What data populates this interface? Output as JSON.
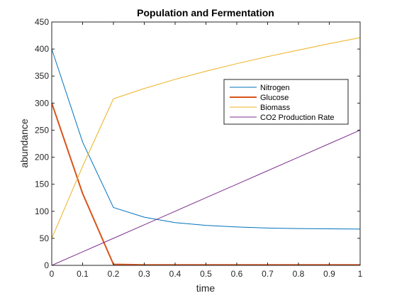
{
  "chart_data": {
    "type": "line",
    "title": "Population and Fermentation",
    "xlabel": "time",
    "ylabel": "abundance",
    "xlim": [
      0,
      1
    ],
    "ylim": [
      0,
      450
    ],
    "xticks": [
      0,
      0.1,
      0.2,
      0.3,
      0.4,
      0.5,
      0.6,
      0.7,
      0.8,
      0.9,
      1
    ],
    "yticks": [
      0,
      50,
      100,
      150,
      200,
      250,
      300,
      350,
      400,
      450
    ],
    "grid": false,
    "legend_position": "top-right",
    "series": [
      {
        "name": "Nitrogen",
        "color": "#0072bd",
        "width": 1,
        "x": [
          0,
          0.1,
          0.2,
          0.3,
          0.4,
          0.5,
          0.6,
          0.7,
          0.8,
          0.9,
          1
        ],
        "y": [
          400,
          228,
          107,
          89,
          79,
          74,
          71,
          69,
          68,
          67.5,
          67
        ]
      },
      {
        "name": "Glucose",
        "color": "#d95319",
        "width": 2,
        "x": [
          0,
          0.1,
          0.2,
          0.3,
          0.4,
          0.5,
          0.6,
          0.7,
          0.8,
          0.9,
          1
        ],
        "y": [
          300,
          133,
          2,
          1,
          1,
          1,
          1,
          1,
          1,
          1,
          1
        ]
      },
      {
        "name": "Biomass",
        "color": "#edb120",
        "width": 1,
        "x": [
          0,
          0.1,
          0.2,
          0.3,
          0.4,
          0.5,
          0.6,
          0.7,
          0.8,
          0.9,
          1
        ],
        "y": [
          50,
          183,
          308,
          327,
          344,
          359,
          373,
          386,
          398,
          410,
          421
        ]
      },
      {
        "name": "CO2 Production Rate",
        "color": "#7e2f8e",
        "width": 1,
        "x": [
          0,
          0.1,
          0.2,
          0.3,
          0.4,
          0.5,
          0.6,
          0.7,
          0.8,
          0.9,
          1
        ],
        "y": [
          0,
          25,
          50,
          75,
          100,
          125,
          150,
          175,
          200,
          225,
          250
        ]
      }
    ]
  }
}
